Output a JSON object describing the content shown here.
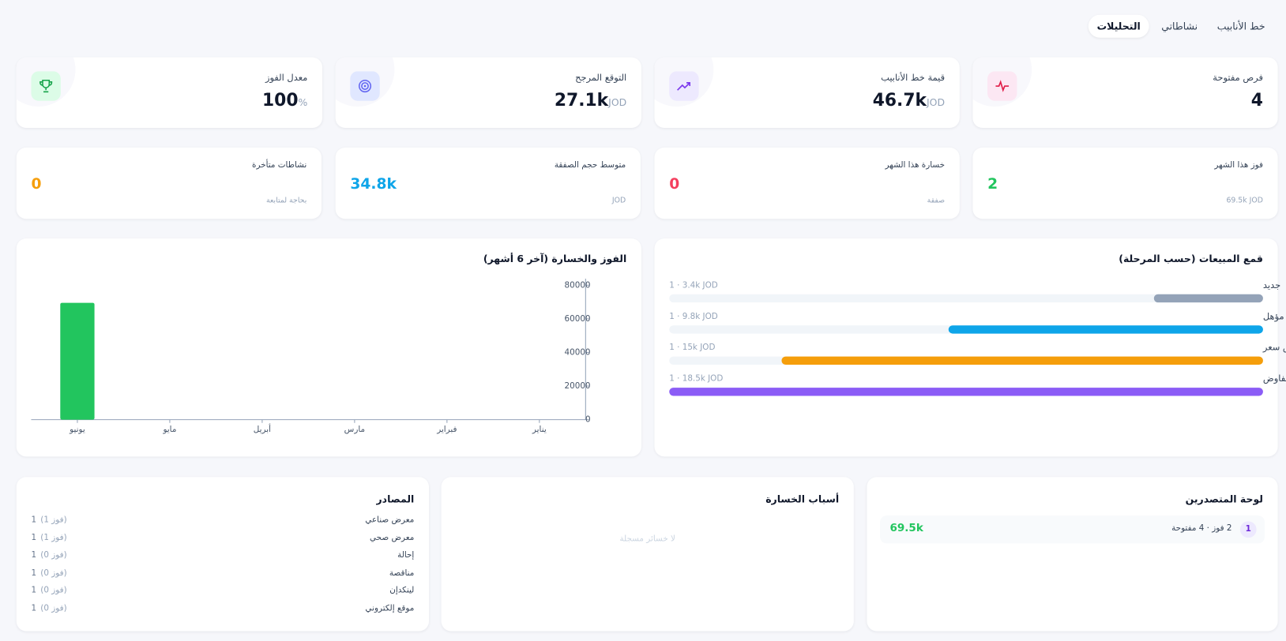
{
  "tabs": [
    "خط الأنابيب",
    "نشاطاتي",
    "التحليلات"
  ],
  "kpis": [
    {
      "title": "فرص مفتوحة",
      "value": 4
    },
    {
      "title": "قيمة خط الأنابيب",
      "value": "46.7k",
      "unit": "JOD"
    },
    {
      "title": "التوقع المرجح",
      "value": "27.1k",
      "unit": "JOD"
    },
    {
      "title": "معدل الفوز",
      "value": 100,
      "unit": "%"
    }
  ],
  "stats": [
    {
      "title": "فوز هذا الشهر",
      "value": 2,
      "sub": "69.5k JOD",
      "color": "#22c55e"
    },
    {
      "title": "خسارة هذا الشهر",
      "value": 0,
      "sub": "صفقة",
      "color": "#f43f5e"
    },
    {
      "title": "متوسط حجم الصفقة",
      "value": "34.8k",
      "sub": "JOD",
      "color": "#0ea5e9"
    },
    {
      "title": "نشاطات متأخرة",
      "value": 0,
      "sub": "بحاجة لمتابعة",
      "color": "#f59e0b"
    }
  ],
  "funnel": {
    "title": "قمع المبيعات (حسب المرحلة)",
    "stages": [
      {
        "name": "جديد",
        "value": 3400,
        "value_label": "1 · 3.4k JOD",
        "color": "#94a3b8"
      },
      {
        "name": "مؤهل",
        "value": 9800,
        "value_label": "1 · 9.8k JOD",
        "color": "#0ea5e9"
      },
      {
        "name": "عرض سعر",
        "value": 15000,
        "value_label": "1 · 15k JOD",
        "color": "#f59e0b"
      },
      {
        "name": "تفاوض",
        "value": 18500,
        "value_label": "1 · 18.5k JOD",
        "color": "#8b5cf6"
      }
    ]
  },
  "chart_data": {
    "type": "bar",
    "title": "الفوز والخسارة (آخر 6 أشهر)",
    "categories": [
      "يناير",
      "فبراير",
      "مارس",
      "أبريل",
      "مايو",
      "يونيو"
    ],
    "values": [
      0,
      0,
      0,
      0,
      0,
      69500
    ],
    "color": "#22c55e",
    "ylim": [
      0,
      80000
    ],
    "yticks": [
      0,
      20000,
      40000,
      60000,
      80000
    ]
  },
  "leaderboard": {
    "title": "لوحة المتصدرين",
    "rows": [
      {
        "rank": 1,
        "summary": "2 فوز · 4 مفتوحة",
        "value": "69.5k"
      }
    ]
  },
  "loss_reasons": {
    "title": "أسباب الخسارة",
    "empty": "لا خسائر مسجلة"
  },
  "sources": {
    "title": "المصادر",
    "rows": [
      {
        "name": "معرض صناعي",
        "count": 1,
        "wins": "(فوز 1)"
      },
      {
        "name": "معرض صحي",
        "count": 1,
        "wins": "(فوز 1)"
      },
      {
        "name": "إحالة",
        "count": 1,
        "wins": "(فوز 0)"
      },
      {
        "name": "مناقصة",
        "count": 1,
        "wins": "(فوز 0)"
      },
      {
        "name": "لينكدإن",
        "count": 1,
        "wins": "(فوز 0)"
      },
      {
        "name": "موقع إلكتروني",
        "count": 1,
        "wins": "(فوز 0)"
      }
    ]
  }
}
